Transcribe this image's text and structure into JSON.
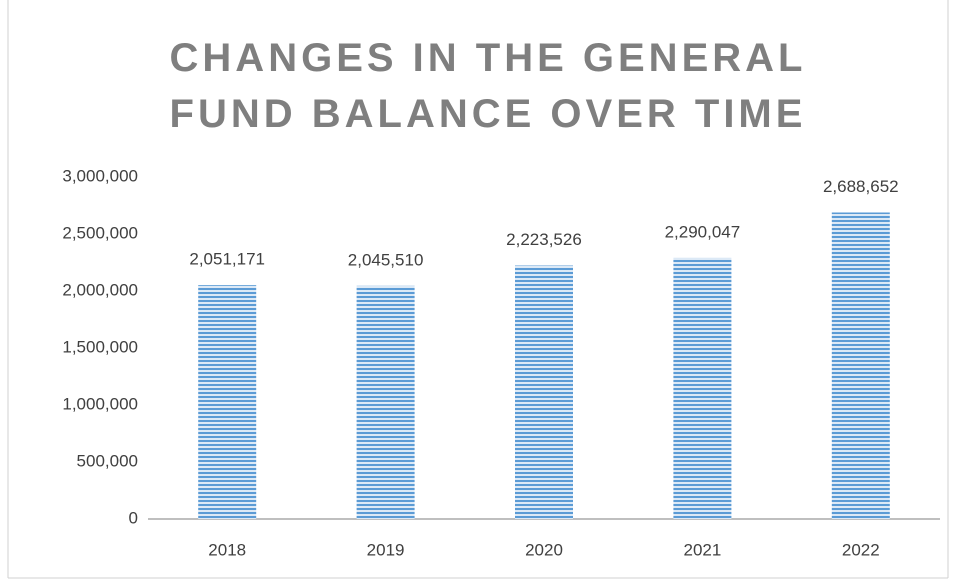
{
  "chart_data": {
    "type": "bar",
    "title": "CHANGES IN THE GENERAL FUND BALANCE OVER TIME",
    "categories": [
      "2018",
      "2019",
      "2020",
      "2021",
      "2022"
    ],
    "values": [
      2051171,
      2045510,
      2223526,
      2290047,
      2688652
    ],
    "value_labels": [
      "2,051,171",
      "2,045,510",
      "2,223,526",
      "2,290,047",
      "2,688,652"
    ],
    "color": "#5b9bd5",
    "ylim": [
      0,
      3000000
    ],
    "yticks": [
      0,
      {
        "value": 500000,
        "label": "500,000"
      },
      {
        "value": 1000000,
        "label": "1,000,000"
      },
      {
        "value": 1500000,
        "label": "1,500,000"
      },
      {
        "value": 2000000,
        "label": "2,000,000"
      },
      {
        "value": 2500000,
        "label": "2,500,000"
      },
      {
        "value": 3000000,
        "label": "3,000,000"
      }
    ],
    "grid": false
  }
}
